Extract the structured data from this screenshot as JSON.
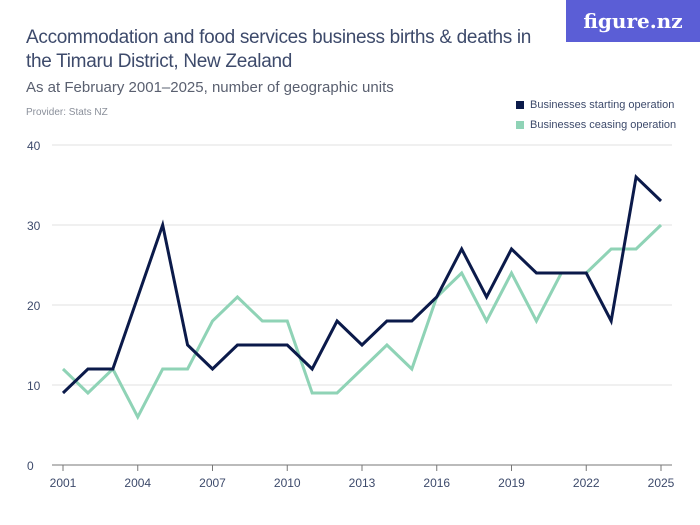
{
  "header": {
    "title": "Accommodation and food services business births & deaths in the Timaru District, New Zealand",
    "subtitle": "As at February 2001–2025, number of geographic units",
    "provider": "Provider: Stats NZ",
    "logo": "figure.nz"
  },
  "chart_data": {
    "type": "line",
    "x": [
      2001,
      2002,
      2003,
      2004,
      2005,
      2006,
      2007,
      2008,
      2009,
      2010,
      2011,
      2012,
      2013,
      2014,
      2015,
      2016,
      2017,
      2018,
      2019,
      2020,
      2021,
      2022,
      2023,
      2024,
      2025
    ],
    "x_tick_labels": [
      "2001",
      "2004",
      "2007",
      "2010",
      "2013",
      "2016",
      "2019",
      "2022",
      "2025"
    ],
    "y_tick_labels": [
      "0",
      "10",
      "20",
      "30",
      "40"
    ],
    "ylim": [
      0,
      40
    ],
    "grid": true,
    "legend_placement": "top-right",
    "series": [
      {
        "name": "Businesses starting operation",
        "color": "#0b1a4a",
        "values": [
          9,
          12,
          12,
          21,
          30,
          15,
          12,
          15,
          15,
          15,
          12,
          18,
          15,
          18,
          18,
          21,
          27,
          21,
          27,
          24,
          24,
          24,
          18,
          36,
          33
        ]
      },
      {
        "name": "Businesses ceasing operation",
        "color": "#8fd3b6",
        "values": [
          12,
          9,
          12,
          6,
          12,
          12,
          18,
          21,
          18,
          18,
          9,
          9,
          12,
          15,
          12,
          21,
          24,
          18,
          24,
          18,
          24,
          24,
          27,
          27,
          30
        ]
      }
    ]
  }
}
